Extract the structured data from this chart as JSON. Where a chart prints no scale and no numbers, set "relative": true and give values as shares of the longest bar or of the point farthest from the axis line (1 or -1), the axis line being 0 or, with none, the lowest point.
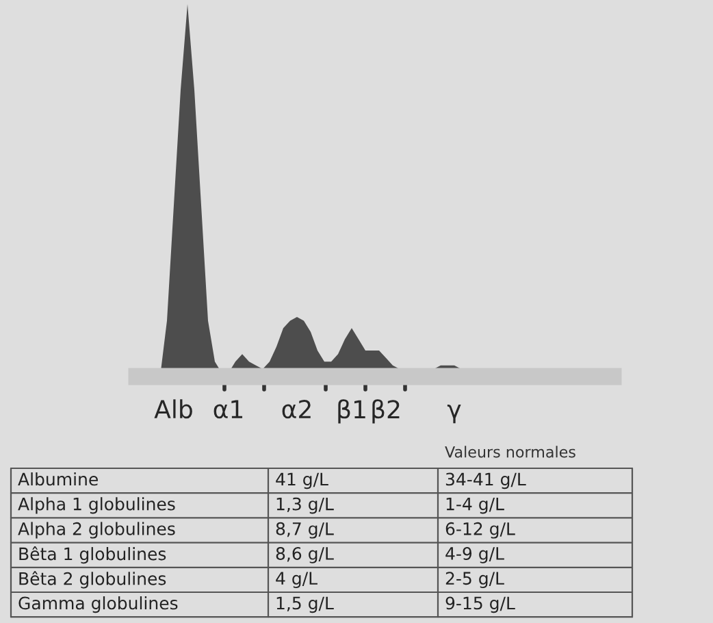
{
  "chart_data": {
    "type": "area",
    "relative": true,
    "color": "#4d4d4d",
    "grid": false,
    "legend": false,
    "categories": [
      null,
      null,
      "Alb",
      null,
      null,
      null,
      null,
      null,
      null,
      null,
      "α1",
      null,
      null,
      null,
      null,
      null,
      null,
      null,
      null,
      null,
      "α2",
      null,
      null,
      null,
      null,
      null,
      null,
      null,
      "β1",
      null,
      null,
      null,
      null,
      "β2",
      null,
      null,
      null,
      null,
      null,
      null,
      null,
      null,
      null,
      "γ",
      null,
      null,
      null,
      null,
      null,
      null,
      null
    ],
    "values": [
      0,
      0.15,
      0.46,
      0.77,
      1.0,
      0.77,
      0.46,
      0.15,
      0.04,
      0.01,
      0.01,
      0.04,
      0.06,
      0.04,
      0.03,
      0.02,
      0.04,
      0.08,
      0.13,
      0.15,
      0.16,
      0.15,
      0.12,
      0.07,
      0.04,
      0.04,
      0.06,
      0.1,
      0.13,
      0.1,
      0.07,
      0.07,
      0.07,
      0.05,
      0.03,
      0.02,
      0.02,
      0.02,
      0.02,
      0.02,
      0.02,
      0.03,
      0.03,
      0.03,
      0.02,
      0.02,
      0.01,
      0.01,
      0.01,
      0,
      0
    ],
    "annotations": [
      "Valeurs normales",
      "Albumine",
      "41 g/L",
      "34-41 g/L",
      "Alpha 1 globulines",
      "1,3 g/L",
      "1-4 g/L",
      "Alpha 2 globulines",
      "8,7 g/L",
      "6-12 g/L",
      "Bêta 1 globulines",
      "8,6 g/L",
      "4-9 g/L",
      "Bêta 2 globulines",
      "4 g/L",
      "2-5 g/L",
      "Gamma globulines",
      "1,5 g/L",
      "9-15 g/L"
    ]
  }
}
